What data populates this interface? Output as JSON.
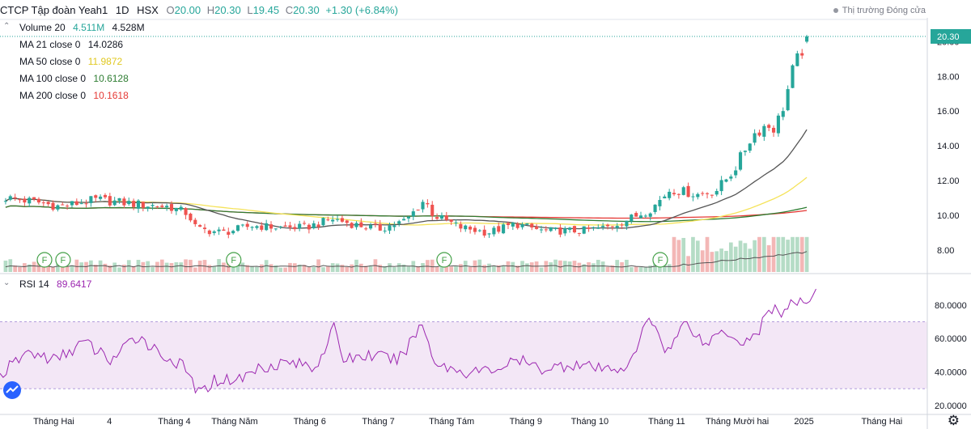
{
  "header": {
    "symbol": "CTCP Tập đoàn Yeah1",
    "interval": "1D",
    "exchange": "HSX",
    "open_label": "O",
    "open": "20.00",
    "high_label": "H",
    "high": "20.30",
    "low_label": "L",
    "low": "19.45",
    "close_label": "C",
    "close": "20.30",
    "change": "+1.30 (+6.84%)",
    "market_status": "Thị trường Đóng cửa"
  },
  "legend": {
    "volume": {
      "label": "Volume 20",
      "v1": "4.511M",
      "v2": "4.528M"
    },
    "ma21": {
      "label": "MA 21 close 0",
      "value": "14.0286"
    },
    "ma50": {
      "label": "MA 50 close 0",
      "value": "11.9872"
    },
    "ma100": {
      "label": "MA 100 close 0",
      "value": "10.6128"
    },
    "ma200": {
      "label": "MA 200 close 0",
      "value": "10.1618"
    },
    "rsi": {
      "label": "RSI 14",
      "value": "89.6417"
    }
  },
  "colors": {
    "up": "#26a69a",
    "down": "#ef5350",
    "ma21": "#555555",
    "ma50": "#f5e35a",
    "ma100": "#2e7d32",
    "ma200": "#e53935",
    "rsi": "#9c27b0",
    "rsi_band": "#f3e7f6",
    "vol_up": "#b5dcc6",
    "vol_down": "#f3b7b6",
    "last_price_bg": "#26a69a"
  },
  "chart_data": [
    {
      "type": "candlestick",
      "ylim": [
        7.2,
        21.0
      ],
      "y_ticks": [
        "8.00",
        "10.00",
        "12.00",
        "14.00",
        "16.00",
        "18.00",
        "20.00"
      ],
      "y_tick_values": [
        8,
        10,
        12,
        14,
        16,
        18,
        20
      ],
      "last_price": "20.30",
      "last_price_value": 20.3,
      "x_labels": [
        "Tháng Hai",
        "4",
        "Tháng 4",
        "Tháng Năm",
        "Tháng 6",
        "Tháng 7",
        "Tháng Tám",
        "Tháng 9",
        "Tháng 10",
        "Tháng 11",
        "Tháng Mười hai",
        "2025",
        "Tháng Hai"
      ],
      "x_label_pos": [
        0.058,
        0.118,
        0.188,
        0.253,
        0.334,
        0.408,
        0.487,
        0.567,
        0.636,
        0.719,
        0.795,
        0.867,
        0.951
      ],
      "dividend_markers": [
        "F",
        "F",
        "F",
        "F",
        "F"
      ],
      "dividend_marker_pos": [
        0.048,
        0.068,
        0.252,
        0.479,
        0.712
      ],
      "close_keypoints": [
        [
          0,
          11.0
        ],
        [
          0.03,
          10.8
        ],
        [
          0.06,
          10.5
        ],
        [
          0.1,
          10.9
        ],
        [
          0.15,
          10.6
        ],
        [
          0.18,
          10.5
        ],
        [
          0.2,
          10.1
        ],
        [
          0.21,
          9.2
        ],
        [
          0.24,
          9.0
        ],
        [
          0.27,
          9.4
        ],
        [
          0.3,
          9.3
        ],
        [
          0.33,
          9.3
        ],
        [
          0.36,
          9.8
        ],
        [
          0.38,
          9.5
        ],
        [
          0.41,
          9.2
        ],
        [
          0.44,
          9.7
        ],
        [
          0.46,
          10.9
        ],
        [
          0.47,
          10.0
        ],
        [
          0.5,
          9.3
        ],
        [
          0.53,
          9.0
        ],
        [
          0.56,
          9.5
        ],
        [
          0.59,
          9.1
        ],
        [
          0.63,
          9.1
        ],
        [
          0.66,
          9.3
        ],
        [
          0.69,
          9.9
        ],
        [
          0.71,
          10.4
        ],
        [
          0.73,
          11.5
        ],
        [
          0.76,
          11.2
        ],
        [
          0.78,
          11.4
        ],
        [
          0.8,
          12.6
        ],
        [
          0.82,
          14.6
        ],
        [
          0.835,
          15.2
        ],
        [
          0.845,
          15.0
        ],
        [
          0.855,
          16.4
        ],
        [
          0.865,
          18.4
        ],
        [
          0.873,
          19.3
        ],
        [
          0.88,
          20.3
        ]
      ],
      "ma_last": {
        "ma21": 14.03,
        "ma50": 11.99,
        "ma100": 10.61,
        "ma200": 10.16
      }
    },
    {
      "type": "line",
      "name": "RSI 14",
      "ylim": [
        18,
        93
      ],
      "band": [
        30,
        70
      ],
      "y_ticks": [
        "20.0000",
        "40.0000",
        "60.0000",
        "80.0000"
      ],
      "y_tick_values": [
        20,
        40,
        60,
        80
      ],
      "keypoints": [
        [
          0,
          38
        ],
        [
          0.03,
          52
        ],
        [
          0.06,
          47
        ],
        [
          0.09,
          58
        ],
        [
          0.12,
          47
        ],
        [
          0.15,
          62
        ],
        [
          0.17,
          52
        ],
        [
          0.2,
          42
        ],
        [
          0.215,
          26
        ],
        [
          0.23,
          35
        ],
        [
          0.26,
          36
        ],
        [
          0.28,
          43
        ],
        [
          0.31,
          46
        ],
        [
          0.34,
          43
        ],
        [
          0.36,
          66
        ],
        [
          0.37,
          48
        ],
        [
          0.4,
          50
        ],
        [
          0.43,
          47
        ],
        [
          0.455,
          69
        ],
        [
          0.47,
          45
        ],
        [
          0.5,
          40
        ],
        [
          0.53,
          41
        ],
        [
          0.56,
          47
        ],
        [
          0.58,
          42
        ],
        [
          0.6,
          43
        ],
        [
          0.62,
          45
        ],
        [
          0.65,
          41
        ],
        [
          0.68,
          44
        ],
        [
          0.7,
          74
        ],
        [
          0.72,
          52
        ],
        [
          0.74,
          71
        ],
        [
          0.76,
          56
        ],
        [
          0.78,
          66
        ],
        [
          0.8,
          58
        ],
        [
          0.815,
          62
        ],
        [
          0.825,
          72
        ],
        [
          0.835,
          80
        ],
        [
          0.845,
          74
        ],
        [
          0.855,
          82
        ],
        [
          0.865,
          80
        ],
        [
          0.875,
          86
        ],
        [
          0.88,
          89.6
        ]
      ]
    }
  ]
}
